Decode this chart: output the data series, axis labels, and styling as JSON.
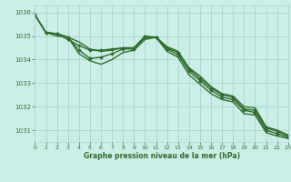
{
  "bg_color": "#cceee8",
  "grid_color": "#aad4cc",
  "line_color": "#2d6e2d",
  "xlabel": "Graphe pression niveau de la mer (hPa)",
  "xlim": [
    0,
    23
  ],
  "ylim": [
    1030.5,
    1036.3
  ],
  "yticks": [
    1031,
    1032,
    1033,
    1034,
    1035,
    1036
  ],
  "xticks": [
    0,
    1,
    2,
    3,
    4,
    5,
    6,
    7,
    8,
    9,
    10,
    11,
    12,
    13,
    14,
    15,
    16,
    17,
    18,
    19,
    20,
    21,
    22,
    23
  ],
  "series": [
    {
      "x": [
        0,
        1,
        2,
        3,
        4,
        5,
        6,
        7,
        8,
        9,
        10,
        11,
        12,
        13,
        14,
        15,
        16,
        17,
        18,
        19,
        20,
        21,
        22,
        23
      ],
      "y": [
        1035.9,
        1035.15,
        1035.1,
        1034.95,
        1034.75,
        1034.45,
        1034.35,
        1034.4,
        1034.5,
        1034.5,
        1034.95,
        1034.95,
        1034.55,
        1034.35,
        1033.65,
        1033.3,
        1032.85,
        1032.55,
        1032.45,
        1032.0,
        1031.95,
        1031.15,
        1031.0,
        1030.8
      ],
      "has_markers": false,
      "lw": 1.0
    },
    {
      "x": [
        0,
        1,
        2,
        3,
        4,
        5,
        6,
        7,
        8,
        9,
        10,
        11,
        12,
        13,
        14,
        15,
        16,
        17,
        18,
        19,
        20,
        21,
        22,
        23
      ],
      "y": [
        1035.9,
        1035.15,
        1035.1,
        1034.85,
        1034.6,
        1034.4,
        1034.4,
        1034.45,
        1034.5,
        1034.5,
        1035.0,
        1034.95,
        1034.5,
        1034.3,
        1033.6,
        1033.2,
        1032.8,
        1032.5,
        1032.4,
        1031.9,
        1031.85,
        1031.1,
        1030.95,
        1030.75
      ],
      "has_markers": true,
      "lw": 1.0
    },
    {
      "x": [
        0,
        1,
        2,
        3,
        4,
        5,
        6,
        7,
        8,
        9,
        10,
        11,
        12,
        13,
        14,
        15,
        16,
        17,
        18,
        19,
        20,
        21,
        22,
        23
      ],
      "y": [
        1035.9,
        1035.15,
        1035.1,
        1034.95,
        1034.4,
        1034.05,
        1034.1,
        1034.25,
        1034.45,
        1034.45,
        1034.95,
        1034.95,
        1034.45,
        1034.2,
        1033.5,
        1033.1,
        1032.7,
        1032.4,
        1032.3,
        1031.85,
        1031.75,
        1031.0,
        1030.85,
        1030.7
      ],
      "has_markers": true,
      "lw": 1.0
    },
    {
      "x": [
        0,
        1,
        2,
        3,
        4,
        5,
        6,
        7,
        8,
        9,
        10,
        11,
        12,
        13,
        14,
        15,
        16,
        17,
        18,
        19,
        20,
        21,
        22,
        23
      ],
      "y": [
        1035.9,
        1035.15,
        1035.0,
        1034.95,
        1034.25,
        1033.95,
        1033.8,
        1034.0,
        1034.3,
        1034.4,
        1034.85,
        1034.95,
        1034.35,
        1034.1,
        1033.35,
        1032.95,
        1032.55,
        1032.3,
        1032.2,
        1031.7,
        1031.65,
        1030.9,
        1030.75,
        1030.65
      ],
      "has_markers": false,
      "lw": 1.0
    }
  ]
}
